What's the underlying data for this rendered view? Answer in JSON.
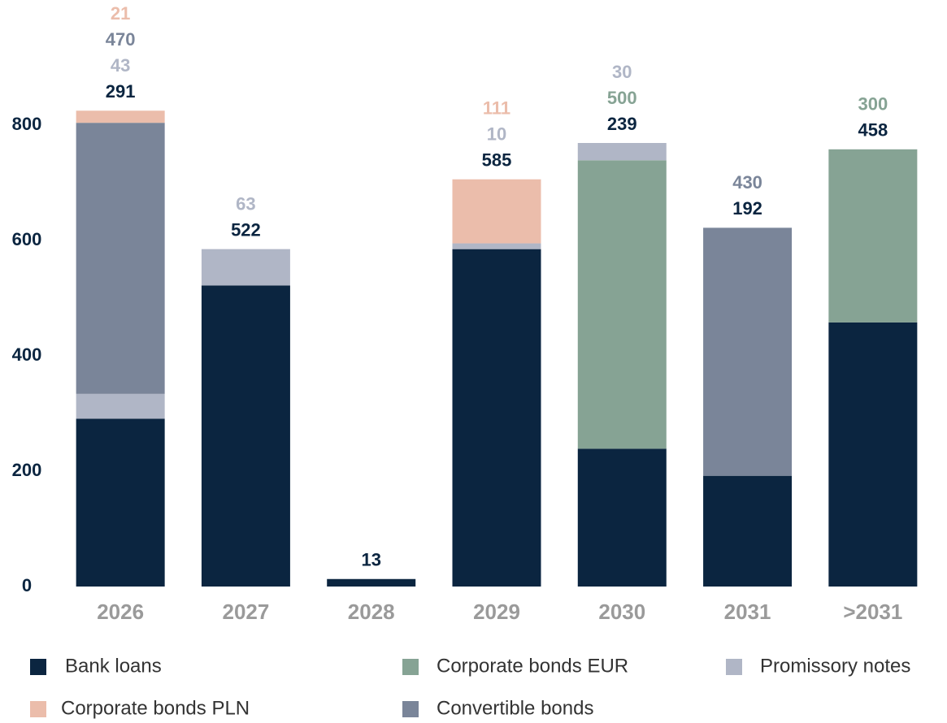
{
  "chart_data": {
    "type": "stacked_bar",
    "categories": [
      "2026",
      "2027",
      "2028",
      "2029",
      "2030",
      "2031",
      ">2031"
    ],
    "series": [
      {
        "name": "Bank loans",
        "color": "#0b2540",
        "values": [
          291,
          522,
          13,
          585,
          239,
          192,
          458
        ]
      },
      {
        "name": "Corporate bonds EUR",
        "color": "#86a394",
        "values": [
          null,
          null,
          null,
          null,
          500,
          null,
          300
        ]
      },
      {
        "name": "Promissory notes",
        "color": "#b0b6c6",
        "values": [
          43,
          63,
          null,
          10,
          30,
          null,
          null
        ]
      },
      {
        "name": "Convertible bonds",
        "color": "#7a8599",
        "values": [
          470,
          null,
          null,
          null,
          null,
          430,
          null
        ]
      },
      {
        "name": "Corporate bonds PLN",
        "color": "#ebbdab",
        "values": [
          21,
          null,
          null,
          111,
          null,
          null,
          null
        ]
      }
    ],
    "ylim": [
      0,
      1000
    ],
    "yticks": [
      0,
      200,
      400,
      600,
      800
    ],
    "grid": false
  }
}
